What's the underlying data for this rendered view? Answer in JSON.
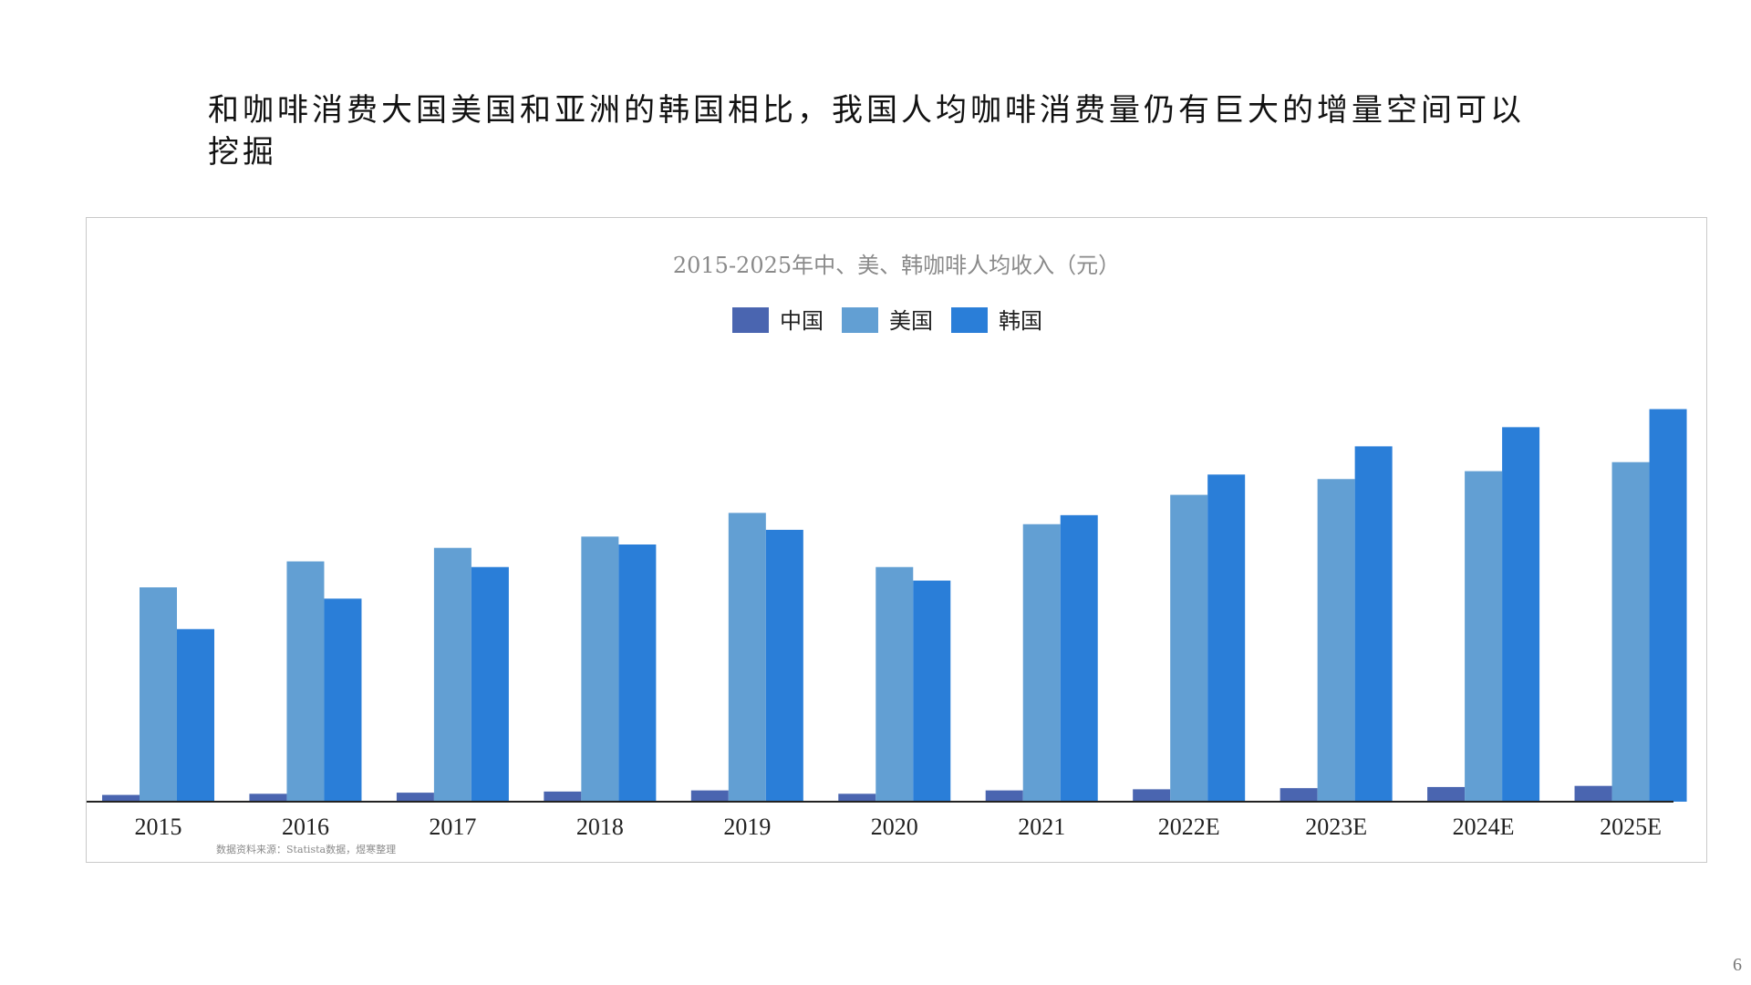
{
  "page": {
    "headline": "和咖啡消费大国美国和亚洲的韩国相比，我国人均咖啡消费量仍有巨大的增量空间可以挖掘",
    "page_number": "6"
  },
  "chart_data": {
    "type": "bar",
    "title": "2015-2025年中、美、韩咖啡人均收入（元）",
    "source_note": "数据资料来源：Statista数据，煜寒整理",
    "categories": [
      "2015",
      "2016",
      "2017",
      "2018",
      "2019",
      "2020",
      "2021",
      "2022E",
      "2023E",
      "2024E",
      "2025E"
    ],
    "series": [
      {
        "name": "中国",
        "color": "#4a65b0",
        "values": [
          6,
          7,
          8,
          9,
          10,
          7,
          10,
          11,
          12,
          13,
          14
        ]
      },
      {
        "name": "美国",
        "color": "#629fd3",
        "values": [
          190,
          213,
          225,
          235,
          256,
          208,
          246,
          272,
          286,
          293,
          301
        ]
      },
      {
        "name": "韩国",
        "color": "#2a7ed8",
        "values": [
          153,
          180,
          208,
          228,
          241,
          196,
          254,
          290,
          315,
          332,
          348
        ]
      }
    ],
    "ylim": [
      0,
      380
    ],
    "xlabel": "",
    "ylabel": "",
    "grid": false,
    "legend_position": "top-center"
  }
}
